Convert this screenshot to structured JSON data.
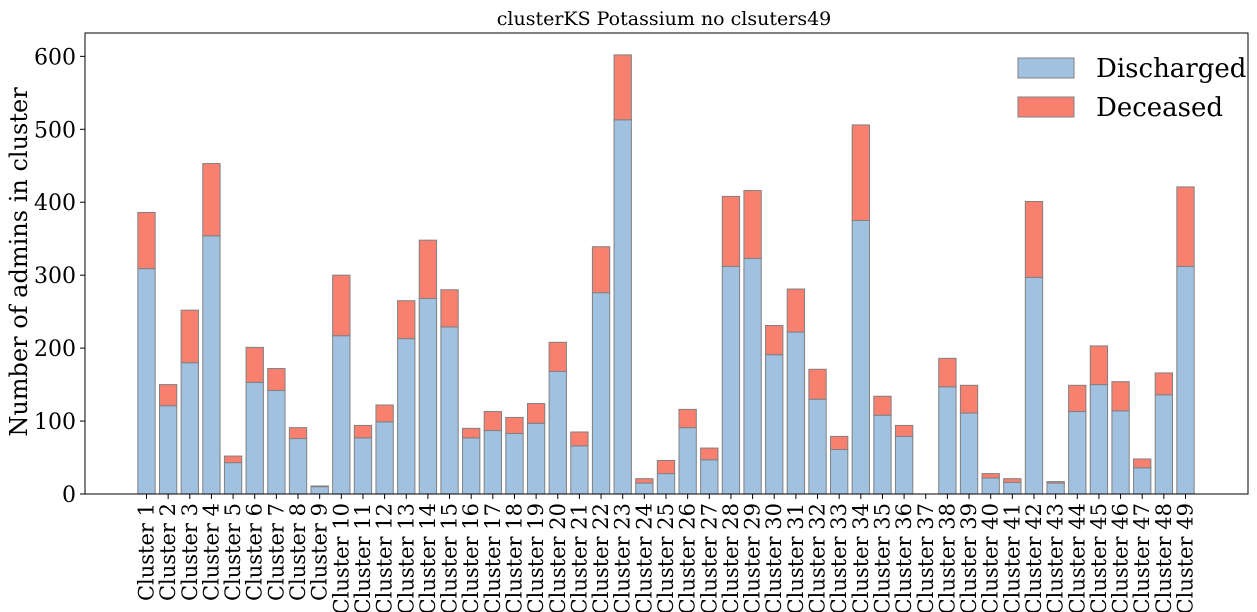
{
  "chart_data": {
    "type": "bar",
    "stacked": true,
    "title": "clusterKS Potassium no clsuters49",
    "xlabel": "",
    "ylabel": "Number of admins in cluster",
    "ylim": [
      0,
      632
    ],
    "yticks": [
      0,
      100,
      200,
      300,
      400,
      500,
      600
    ],
    "grid": false,
    "legend_position": "top-right",
    "categories": [
      "Cluster 1",
      "Cluster 2",
      "Cluster 3",
      "Cluster 4",
      "Cluster 5",
      "Cluster 6",
      "Cluster 7",
      "Cluster 8",
      "Cluster 9",
      "Cluster 10",
      "Cluster 11",
      "Cluster 12",
      "Cluster 13",
      "Cluster 14",
      "Cluster 15",
      "Cluster 16",
      "Cluster 17",
      "Cluster 18",
      "Cluster 19",
      "Cluster 20",
      "Cluster 21",
      "Cluster 22",
      "Cluster 23",
      "Cluster 24",
      "Cluster 25",
      "Cluster 26",
      "Cluster 27",
      "Cluster 28",
      "Cluster 29",
      "Cluster 30",
      "Cluster 31",
      "Cluster 32",
      "Cluster 33",
      "Cluster 34",
      "Cluster 35",
      "Cluster 36",
      "Cluster 37",
      "Cluster 38",
      "Cluster 39",
      "Cluster 40",
      "Cluster 41",
      "Cluster 42",
      "Cluster 43",
      "Cluster 44",
      "Cluster 45",
      "Cluster 46",
      "Cluster 47",
      "Cluster 48",
      "Cluster 49"
    ],
    "series": [
      {
        "name": "Discharged",
        "color": "#a0c1e0",
        "values": [
          309,
          121,
          180,
          354,
          43,
          153,
          142,
          76,
          10,
          217,
          77,
          99,
          213,
          268,
          229,
          77,
          87,
          83,
          97,
          168,
          66,
          276,
          513,
          15,
          28,
          91,
          47,
          312,
          323,
          191,
          222,
          130,
          61,
          375,
          108,
          79,
          0,
          147,
          111,
          22,
          16,
          297,
          15,
          113,
          150,
          114,
          36,
          136,
          312
        ]
      },
      {
        "name": "Deceased",
        "color": "#f9806f",
        "values": [
          77,
          29,
          72,
          99,
          9,
          48,
          30,
          15,
          1,
          83,
          17,
          23,
          52,
          80,
          51,
          13,
          26,
          22,
          27,
          40,
          19,
          63,
          89,
          6,
          18,
          25,
          16,
          96,
          93,
          40,
          59,
          41,
          18,
          131,
          26,
          15,
          0,
          39,
          38,
          6,
          5,
          104,
          2,
          36,
          53,
          40,
          12,
          30,
          109
        ]
      }
    ],
    "bar_edge_color": "#808080",
    "axis_color": "#000000"
  }
}
